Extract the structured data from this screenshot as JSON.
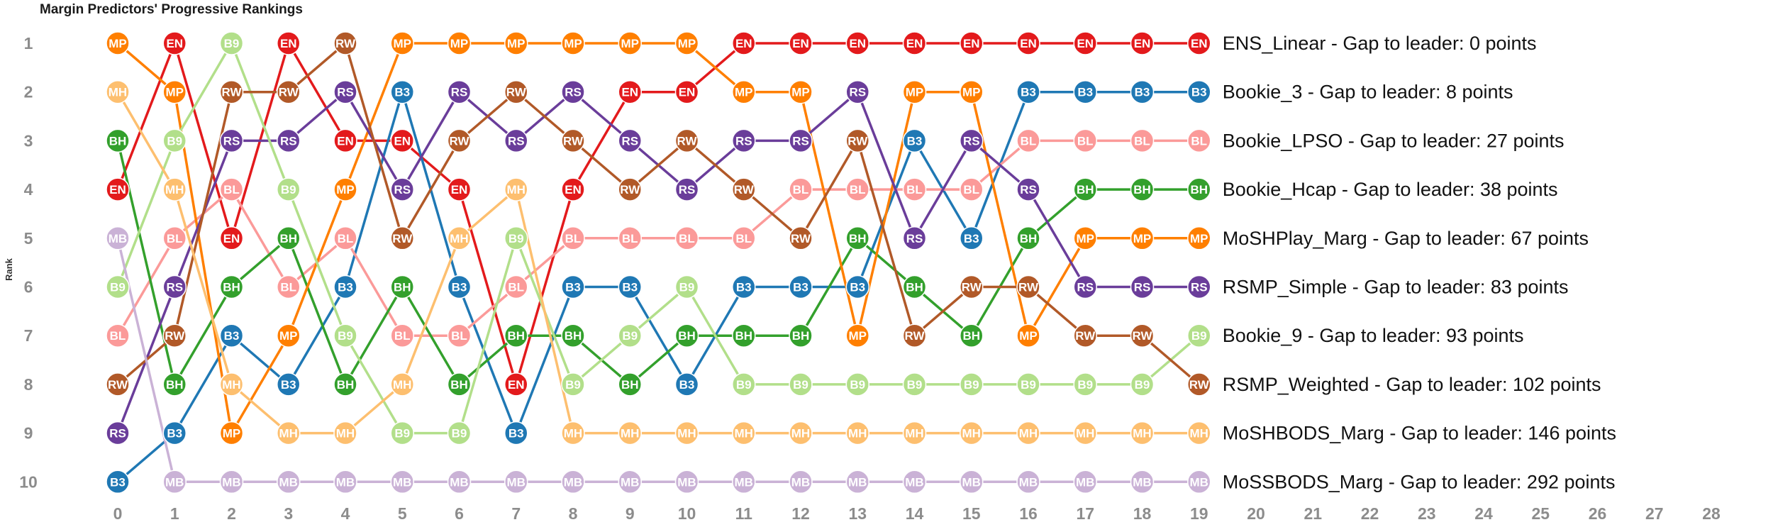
{
  "chart_data": {
    "type": "line",
    "title": "Margin Predictors' Progressive Rankings",
    "ylabel": "Rank",
    "xlabel": "",
    "x": [
      0,
      1,
      2,
      3,
      4,
      5,
      6,
      7,
      8,
      9,
      10,
      11,
      12,
      13,
      14,
      15,
      16,
      17,
      18,
      19
    ],
    "x_ticks": [
      0,
      1,
      2,
      3,
      4,
      5,
      6,
      7,
      8,
      9,
      10,
      11,
      12,
      13,
      14,
      15,
      16,
      17,
      18,
      19,
      20,
      21,
      22,
      23,
      24,
      25,
      26,
      27,
      28
    ],
    "y_ticks": [
      1,
      2,
      3,
      4,
      5,
      6,
      7,
      8,
      9,
      10
    ],
    "xlim": [
      0,
      28
    ],
    "ylim": [
      10,
      1
    ],
    "grid": false,
    "series": [
      {
        "code": "EN",
        "color": "#e31a1c",
        "label": "ENS_Linear - Gap to leader: 0 points",
        "values": [
          4,
          1,
          5,
          1,
          3,
          3,
          4,
          8,
          4,
          2,
          2,
          1,
          1,
          1,
          1,
          1,
          1,
          1,
          1,
          1
        ]
      },
      {
        "code": "B3",
        "color": "#1f78b4",
        "label": "Bookie_3 - Gap to leader: 8 points",
        "values": [
          10,
          9,
          7,
          8,
          6,
          2,
          6,
          9,
          6,
          6,
          8,
          6,
          6,
          6,
          3,
          5,
          2,
          2,
          2,
          2
        ]
      },
      {
        "code": "BL",
        "color": "#fb9a99",
        "label": "Bookie_LPSO - Gap to leader: 27 points",
        "values": [
          7,
          5,
          4,
          6,
          5,
          7,
          7,
          6,
          5,
          5,
          5,
          5,
          4,
          4,
          4,
          4,
          3,
          3,
          3,
          3
        ]
      },
      {
        "code": "BH",
        "color": "#33a02c",
        "label": "Bookie_Hcap - Gap to leader: 38 points",
        "values": [
          3,
          8,
          6,
          5,
          8,
          6,
          8,
          7,
          7,
          8,
          7,
          7,
          7,
          5,
          6,
          7,
          5,
          4,
          4,
          4
        ]
      },
      {
        "code": "MP",
        "color": "#ff7f00",
        "label": "MoSHPlay_Marg - Gap to leader: 67 points",
        "values": [
          1,
          2,
          9,
          7,
          4,
          1,
          1,
          1,
          1,
          1,
          1,
          2,
          2,
          7,
          2,
          2,
          7,
          5,
          5,
          5
        ]
      },
      {
        "code": "RS",
        "color": "#6a3d9a",
        "label": "RSMP_Simple - Gap to leader: 83 points",
        "values": [
          9,
          6,
          3,
          3,
          2,
          4,
          2,
          3,
          2,
          3,
          4,
          3,
          3,
          2,
          5,
          3,
          4,
          6,
          6,
          6
        ]
      },
      {
        "code": "B9",
        "color": "#b2df8a",
        "label": "Bookie_9 - Gap to leader: 93 points",
        "values": [
          6,
          3,
          1,
          4,
          7,
          9,
          9,
          5,
          8,
          7,
          6,
          8,
          8,
          8,
          8,
          8,
          8,
          8,
          8,
          7
        ]
      },
      {
        "code": "RW",
        "color": "#b15928",
        "label": "RSMP_Weighted - Gap to leader: 102 points",
        "values": [
          8,
          7,
          2,
          2,
          1,
          5,
          3,
          2,
          3,
          4,
          3,
          4,
          5,
          3,
          7,
          6,
          6,
          7,
          7,
          8
        ]
      },
      {
        "code": "MH",
        "color": "#fdbf6f",
        "label": "MoSHBODS_Marg - Gap to leader: 146 points",
        "values": [
          2,
          4,
          8,
          9,
          9,
          8,
          5,
          4,
          9,
          9,
          9,
          9,
          9,
          9,
          9,
          9,
          9,
          9,
          9,
          9
        ]
      },
      {
        "code": "MB",
        "color": "#cab2d6",
        "label": "MoSSBODS_Marg - Gap to leader: 292 points",
        "values": [
          5,
          10,
          10,
          10,
          10,
          10,
          10,
          10,
          10,
          10,
          10,
          10,
          10,
          10,
          10,
          10,
          10,
          10,
          10,
          10
        ]
      }
    ]
  }
}
